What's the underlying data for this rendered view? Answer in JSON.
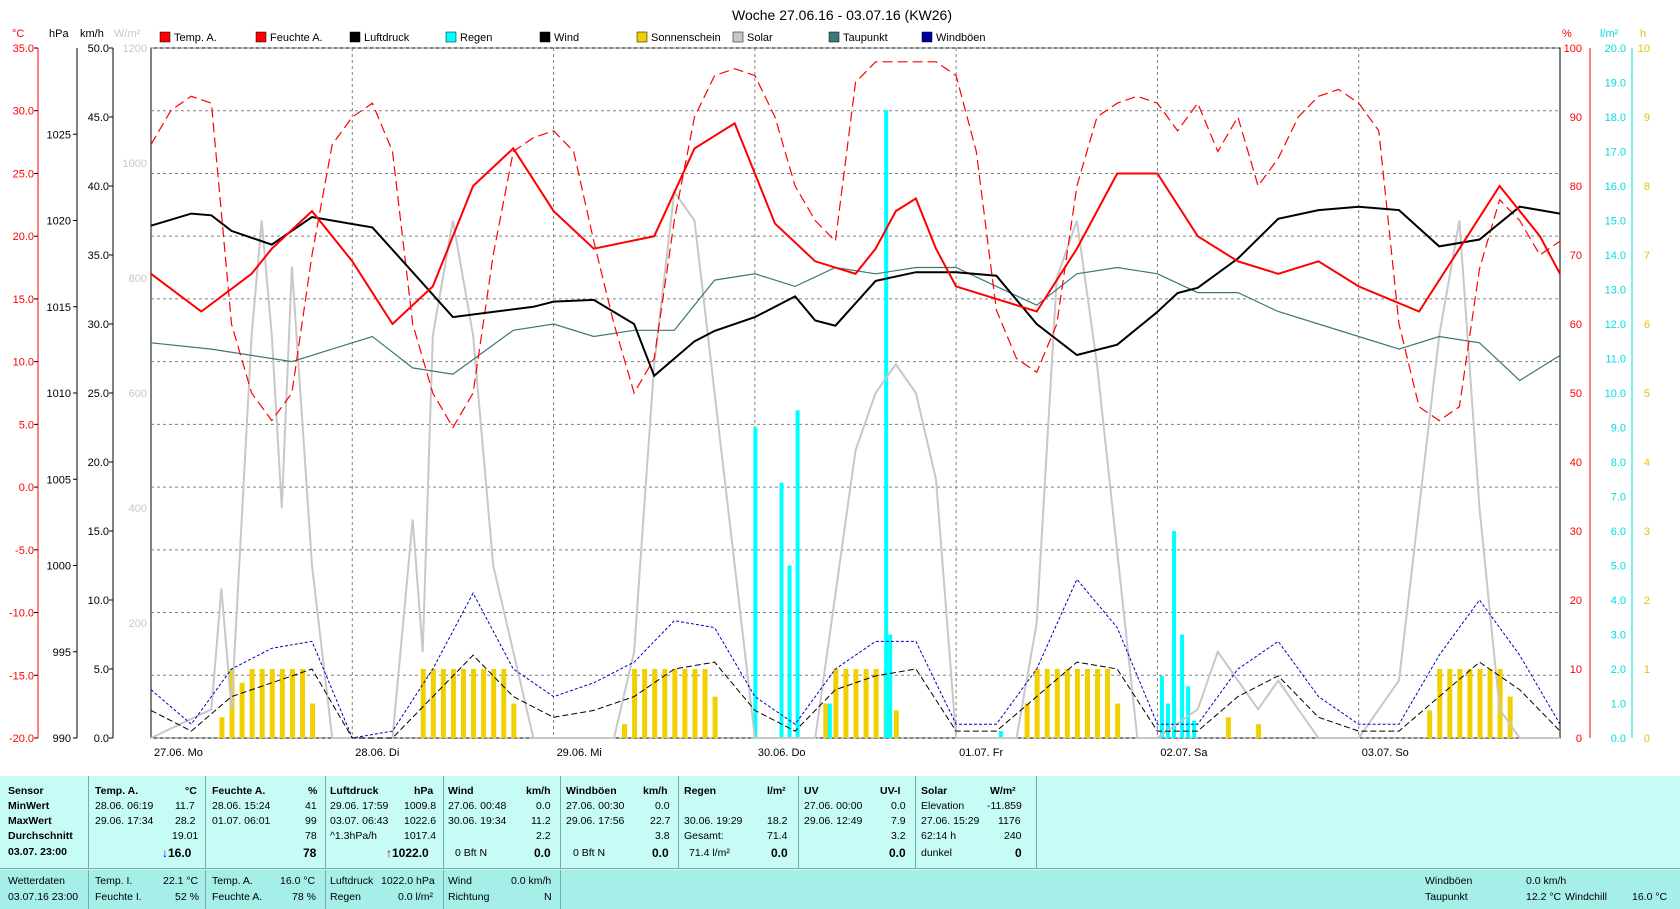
{
  "chart_data": {
    "type": "line",
    "title": "Woche 27.06.16 - 03.07.16 (KW26)",
    "x_ticks": [
      "27.06. Mo",
      "28.06. Di",
      "29.06. Mi",
      "30.06. Do",
      "01.07. Fr",
      "02.07. Sa",
      "03.07. So"
    ],
    "x_range": [
      0,
      7
    ],
    "axes": {
      "temp_c": {
        "unit": "°C",
        "range": [
          -20,
          35
        ],
        "ticks": [
          "35.0",
          "30.0",
          "25.0",
          "20.0",
          "15.0",
          "10.0",
          "5.0",
          "0.0",
          "-5.0",
          "-10.0",
          "-15.0",
          "-20.0"
        ]
      },
      "pressure_hpa": {
        "unit": "hPa",
        "range": [
          990,
          1030
        ],
        "ticks": [
          "1025",
          "1020",
          "1015",
          "1010",
          "1005",
          "1000",
          "995",
          "990"
        ]
      },
      "wind_kmh": {
        "unit": "km/h",
        "range": [
          0,
          50
        ],
        "ticks": [
          "50.0",
          "45.0",
          "40.0",
          "35.0",
          "30.0",
          "25.0",
          "20.0",
          "15.0",
          "10.0",
          "5.0",
          "0.0"
        ]
      },
      "solar_wm2": {
        "unit": "W/m²",
        "range": [
          0,
          1200
        ],
        "ticks": [
          "1200",
          "1000",
          "800",
          "600",
          "400",
          "200"
        ]
      },
      "humidity_pct": {
        "unit": "%",
        "range": [
          0,
          100
        ],
        "ticks": [
          "100",
          "90",
          "80",
          "70",
          "60",
          "50",
          "40",
          "30",
          "20",
          "10",
          "0"
        ]
      },
      "rain_lm2": {
        "unit": "l/m²",
        "range": [
          0,
          20
        ],
        "ticks": [
          "20.0",
          "19.0",
          "18.0",
          "17.0",
          "16.0",
          "15.0",
          "14.0",
          "13.0",
          "12.0",
          "11.0",
          "10.0",
          "9.0",
          "8.0",
          "7.0",
          "6.0",
          "5.0",
          "4.0",
          "3.0",
          "2.0",
          "1.0",
          "0.0"
        ]
      },
      "sun_h": {
        "unit": "h",
        "range": [
          0,
          10
        ],
        "ticks": [
          "10",
          "9",
          "8",
          "7",
          "6",
          "5",
          "4",
          "3",
          "2",
          "1",
          "0"
        ]
      }
    },
    "legend": [
      {
        "name": "Temp. A.",
        "color": "#ff0000"
      },
      {
        "name": "Feuchte A.",
        "color": "#ff0000"
      },
      {
        "name": "Luftdruck",
        "color": "#000000"
      },
      {
        "name": "Regen",
        "color": "#00ffff"
      },
      {
        "name": "Wind",
        "color": "#000000"
      },
      {
        "name": "Sonnenschein",
        "color": "#f0d000"
      },
      {
        "name": "Solar",
        "color": "#c8c8c8"
      },
      {
        "name": "Taupunkt",
        "color": "#3c7878"
      },
      {
        "name": "Windböen",
        "color": "#0000a0"
      }
    ],
    "series": [
      {
        "name": "Temp. A.",
        "unit": "°C",
        "x": [
          0,
          0.25,
          0.5,
          0.6,
          0.8,
          1.0,
          1.2,
          1.4,
          1.6,
          1.8,
          2.0,
          2.2,
          2.5,
          2.7,
          2.9,
          3.1,
          3.3,
          3.5,
          3.6,
          3.7,
          3.8,
          3.9,
          4.0,
          4.2,
          4.4,
          4.6,
          4.8,
          5.0,
          5.2,
          5.4,
          5.6,
          5.8,
          6.0,
          6.3,
          6.5,
          6.7,
          6.9,
          7.0
        ],
        "y": [
          17,
          14,
          17,
          19,
          22,
          18,
          13,
          16,
          24,
          27,
          22,
          19,
          20,
          27,
          29,
          21,
          18,
          17,
          19,
          22,
          23,
          19,
          16,
          15,
          14,
          19,
          25,
          25,
          20,
          18,
          17,
          18,
          16,
          14,
          19,
          24,
          20,
          17
        ]
      },
      {
        "name": "Feuchte A.",
        "unit": "%",
        "x": [
          0,
          0.1,
          0.2,
          0.3,
          0.4,
          0.5,
          0.6,
          0.7,
          0.8,
          0.9,
          1.0,
          1.1,
          1.2,
          1.3,
          1.4,
          1.5,
          1.6,
          1.7,
          1.8,
          1.9,
          2.0,
          2.1,
          2.2,
          2.3,
          2.4,
          2.5,
          2.6,
          2.7,
          2.8,
          2.9,
          3.0,
          3.1,
          3.2,
          3.3,
          3.4,
          3.5,
          3.6,
          3.7,
          3.8,
          3.9,
          4.0,
          4.1,
          4.2,
          4.3,
          4.4,
          4.5,
          4.6,
          4.7,
          4.8,
          4.9,
          5.0,
          5.1,
          5.2,
          5.3,
          5.4,
          5.5,
          5.6,
          5.7,
          5.8,
          5.9,
          6.0,
          6.1,
          6.2,
          6.3,
          6.4,
          6.5,
          6.6,
          6.7,
          6.8,
          6.9,
          7.0
        ],
        "y": [
          86,
          91,
          93,
          92,
          60,
          50,
          46,
          50,
          70,
          86,
          90,
          92,
          85,
          60,
          50,
          45,
          50,
          70,
          85,
          87,
          88,
          85,
          72,
          60,
          50,
          55,
          75,
          90,
          96,
          97,
          96,
          90,
          80,
          75,
          72,
          95,
          98,
          98,
          98,
          98,
          96,
          85,
          62,
          55,
          53,
          60,
          80,
          90,
          92,
          93,
          92,
          88,
          92,
          85,
          90,
          80,
          84,
          90,
          93,
          94,
          92,
          88,
          60,
          48,
          46,
          48,
          68,
          78,
          75,
          70,
          72
        ]
      },
      {
        "name": "Luftdruck",
        "unit": "hPa",
        "x": [
          0,
          0.2,
          0.3,
          0.4,
          0.6,
          0.8,
          1.0,
          1.1,
          1.3,
          1.5,
          1.7,
          1.9,
          2.0,
          2.2,
          2.4,
          2.5,
          2.7,
          2.8,
          3.0,
          3.2,
          3.3,
          3.4,
          3.6,
          3.8,
          3.9,
          4.0,
          4.2,
          4.4,
          4.6,
          4.8,
          5.0,
          5.1,
          5.2,
          5.4,
          5.6,
          5.8,
          6.0,
          6.2,
          6.4,
          6.6,
          6.8,
          6.9,
          7.0
        ],
        "y": [
          1019.7,
          1020.4,
          1020.3,
          1019.4,
          1018.6,
          1020.2,
          1019.8,
          1019.6,
          1017.0,
          1014.4,
          1014.7,
          1015.0,
          1015.3,
          1015.4,
          1014.0,
          1011.0,
          1013.0,
          1013.6,
          1014.4,
          1015.6,
          1014.2,
          1013.9,
          1016.5,
          1017.0,
          1017.0,
          1017.0,
          1016.8,
          1014.0,
          1012.2,
          1012.8,
          1014.7,
          1015.8,
          1016.1,
          1017.8,
          1020.1,
          1020.6,
          1020.8,
          1020.6,
          1018.5,
          1018.9,
          1020.8,
          1020.6,
          1020.4
        ]
      },
      {
        "name": "Taupunkt",
        "unit": "°C",
        "x": [
          0,
          0.3,
          0.5,
          0.7,
          0.9,
          1.1,
          1.3,
          1.5,
          1.8,
          2.0,
          2.2,
          2.4,
          2.6,
          2.8,
          3.0,
          3.2,
          3.4,
          3.6,
          3.8,
          4.0,
          4.2,
          4.4,
          4.6,
          4.8,
          5.0,
          5.2,
          5.4,
          5.6,
          5.8,
          6.0,
          6.2,
          6.4,
          6.6,
          6.8,
          7.0
        ],
        "y": [
          11.5,
          11.0,
          10.5,
          10.0,
          11.0,
          12.0,
          9.5,
          9.0,
          12.5,
          13.0,
          12.0,
          12.5,
          12.5,
          16.5,
          17.0,
          16.0,
          17.5,
          17.0,
          17.5,
          17.5,
          16.0,
          14.5,
          17.0,
          17.5,
          17.0,
          15.5,
          15.5,
          14.0,
          13.0,
          12.0,
          11.0,
          12.0,
          11.5,
          8.5,
          10.5
        ]
      },
      {
        "name": "Solar",
        "unit": "W/m²",
        "x": [
          0,
          0.3,
          0.35,
          0.4,
          0.5,
          0.55,
          0.6,
          0.65,
          0.7,
          0.8,
          0.9,
          1.2,
          1.3,
          1.35,
          1.4,
          1.5,
          1.6,
          1.7,
          1.9,
          2.0,
          2.3,
          2.4,
          2.5,
          2.6,
          2.7,
          2.8,
          3.0,
          3.1,
          3.2,
          3.3,
          3.4,
          3.5,
          3.6,
          3.7,
          3.8,
          3.9,
          4.0,
          4.3,
          4.4,
          4.5,
          4.6,
          4.7,
          4.9,
          5.0,
          5.2,
          5.3,
          5.4,
          5.5,
          5.6,
          5.7,
          5.8,
          6.0,
          6.2,
          6.3,
          6.4,
          6.5,
          6.6,
          6.7,
          6.8,
          6.9,
          7.0
        ],
        "y": [
          0,
          50,
          260,
          50,
          700,
          900,
          700,
          400,
          820,
          300,
          0,
          0,
          380,
          150,
          700,
          900,
          700,
          300,
          0,
          0,
          0,
          150,
          650,
          950,
          900,
          600,
          0,
          0,
          0,
          0,
          250,
          500,
          600,
          650,
          600,
          450,
          0,
          0,
          200,
          800,
          900,
          650,
          0,
          0,
          50,
          150,
          100,
          50,
          100,
          50,
          0,
          0,
          100,
          400,
          700,
          900,
          400,
          50,
          0,
          0,
          0
        ]
      },
      {
        "name": "Wind",
        "unit": "km/h",
        "x": [
          0,
          0.2,
          0.4,
          0.6,
          0.8,
          1.0,
          1.2,
          1.4,
          1.6,
          1.8,
          2.0,
          2.2,
          2.4,
          2.6,
          2.8,
          3.0,
          3.2,
          3.4,
          3.6,
          3.8,
          4.0,
          4.2,
          4.4,
          4.6,
          4.8,
          5.0,
          5.2,
          5.4,
          5.6,
          5.8,
          6.0,
          6.2,
          6.4,
          6.6,
          6.8,
          7.0
        ],
        "y": [
          2.0,
          0.5,
          3.0,
          4.0,
          5.0,
          0.0,
          0.0,
          3.0,
          6.0,
          3.0,
          1.5,
          2.0,
          3.0,
          5.0,
          5.5,
          2.0,
          0.5,
          3.5,
          4.5,
          5.0,
          0.5,
          0.5,
          3.0,
          5.5,
          5.0,
          0.5,
          0.5,
          3.0,
          4.5,
          1.5,
          0.5,
          0.5,
          3.0,
          5.5,
          3.5,
          0.5
        ]
      },
      {
        "name": "Windböen",
        "unit": "km/h",
        "x": [
          0,
          0.2,
          0.4,
          0.6,
          0.8,
          1.0,
          1.2,
          1.4,
          1.6,
          1.8,
          2.0,
          2.2,
          2.4,
          2.6,
          2.8,
          3.0,
          3.2,
          3.4,
          3.6,
          3.8,
          4.0,
          4.2,
          4.4,
          4.6,
          4.8,
          5.0,
          5.2,
          5.4,
          5.6,
          5.8,
          6.0,
          6.2,
          6.4,
          6.6,
          6.8,
          7.0
        ],
        "y": [
          3.5,
          1.0,
          5.0,
          6.5,
          7.0,
          0.0,
          0.5,
          5.0,
          10.5,
          5.0,
          3.0,
          4.0,
          5.5,
          8.5,
          8.0,
          3.0,
          1.0,
          5.0,
          7.0,
          7.0,
          1.0,
          1.0,
          5.0,
          11.5,
          8.0,
          1.0,
          1.0,
          5.0,
          7.0,
          3.0,
          1.0,
          1.0,
          6.0,
          10.0,
          6.0,
          1.0
        ]
      }
    ],
    "rain_bars": {
      "unit": "l/m²",
      "x": [
        3.0,
        3.13,
        3.17,
        3.21,
        3.37,
        3.65,
        3.67,
        4.22,
        5.02,
        5.05,
        5.08,
        5.12,
        5.15,
        5.18
      ],
      "y": [
        9.0,
        7.4,
        5.0,
        9.5,
        1.0,
        18.2,
        3.0,
        0.2,
        1.8,
        1.0,
        6.0,
        3.0,
        1.5,
        0.5
      ]
    },
    "sun_bars": {
      "unit": "h",
      "x": [
        0.35,
        0.4,
        0.45,
        0.5,
        0.55,
        0.6,
        0.65,
        0.7,
        0.75,
        0.8,
        1.35,
        1.4,
        1.45,
        1.5,
        1.55,
        1.6,
        1.65,
        1.7,
        1.75,
        1.8,
        2.35,
        2.4,
        2.45,
        2.5,
        2.55,
        2.6,
        2.65,
        2.7,
        2.75,
        2.8,
        3.35,
        3.4,
        3.45,
        3.5,
        3.55,
        3.6,
        3.65,
        3.7,
        4.35,
        4.4,
        4.45,
        4.5,
        4.55,
        4.6,
        4.65,
        4.7,
        4.75,
        4.8,
        5.35,
        5.5,
        6.35,
        6.4,
        6.45,
        6.5,
        6.55,
        6.6,
        6.65,
        6.7,
        6.75
      ],
      "y": [
        0.3,
        1,
        0.8,
        1,
        1,
        1,
        1,
        1,
        1,
        0.5,
        1,
        1,
        1,
        1,
        1,
        1,
        1,
        1,
        1,
        0.5,
        0.2,
        1,
        1,
        1,
        1,
        1,
        1,
        1,
        1,
        0.6,
        0.5,
        1,
        1,
        1,
        1,
        1,
        1,
        0.4,
        0.5,
        1,
        1,
        1,
        1,
        1,
        1,
        1,
        1,
        0.5,
        0.3,
        0.2,
        0.4,
        1,
        1,
        1,
        1,
        1,
        1,
        1,
        0.6
      ]
    }
  },
  "table": {
    "rows_label": [
      "Sensor",
      "MinWert",
      "MaxWert",
      "Durchschnitt",
      "03.07. 23:00"
    ],
    "temp": {
      "head": "Temp. A.",
      "unit": "°C",
      "min_t": "28.06. 06:19",
      "min_v": "11.7",
      "max_t": "29.06. 17:34",
      "max_v": "28.2",
      "avg": "19.01",
      "now": "16.0"
    },
    "hum": {
      "head": "Feuchte A.",
      "unit": "%",
      "min_t": "28.06. 15:24",
      "min_v": "41",
      "max_t": "01.07. 06:01",
      "max_v": "99",
      "avg": "78",
      "now": "78"
    },
    "press": {
      "head": "Luftdruck",
      "unit": "hPa",
      "min_t": "29.06. 17:59",
      "min_v": "1009.8",
      "max_t": "03.07. 06:43",
      "max_v": "1022.6",
      "avg_t": "^1.3hPa/h",
      "avg": "1017.4",
      "now": "1022.0"
    },
    "wind": {
      "head": "Wind",
      "unit": "km/h",
      "min_t": "27.06. 00:48",
      "min_v": "0.0",
      "max_t": "30.06. 19:34",
      "max_v": "11.2",
      "avg": "2.2",
      "avg2": "3.8",
      "now_t": "0 Bft N",
      "now": "0.0"
    },
    "gust": {
      "head": "Windböen",
      "unit": "km/h",
      "min_t": "27.06. 00:30",
      "min_v": "0.0",
      "max_t": "29.06. 17:56",
      "max_v": "22.7",
      "now_t": "0 Bft N",
      "now": "0.0"
    },
    "rain": {
      "head": "Regen",
      "unit": "l/m²",
      "max_t": "30.06. 19:29",
      "max_v": "18.2",
      "tot_l": "Gesamt:",
      "tot_v": "71.4",
      "now_t": "71.4 l/m²",
      "now": "0.0"
    },
    "uv": {
      "head": "UV",
      "unit": "UV-I",
      "min_t": "27.06. 00:00",
      "min_v": "0.0",
      "max_t": "29.06. 12:49",
      "max_v": "7.9",
      "avg": "3.2",
      "now": "0.0"
    },
    "solar": {
      "head": "Solar",
      "unit": "W/m²",
      "min_t": "Elevation",
      "min_v": "-11.859",
      "max_t": "27.06. 15:29",
      "max_v": "1176",
      "avg_t": "62:14 h",
      "avg": "240",
      "now_t": "dunkel",
      "now": "0"
    },
    "footer": {
      "l1": "Wetterdaten",
      "l2": "03.07.16 23:00",
      "ti_l": "Temp. I.",
      "ti_v": "22.1 °C",
      "fi_l": "Feuchte I.",
      "fi_v": "52 %",
      "ta_l": "Temp. A.",
      "ta_v": "16.0 °C",
      "fa_l": "Feuchte A.",
      "fa_v": "78 %",
      "lp_l": "Luftdruck",
      "lp_v": "1022.0 hPa",
      "rg_l": "Regen",
      "rg_v": "0.0 l/m²",
      "wd_l": "Wind",
      "wd_v": "0.0 km/h",
      "ri_l": "Richtung",
      "ri_v": "N",
      "wb_l": "Windböen",
      "wb_v": "0.0 km/h",
      "tp_l": "Taupunkt",
      "tp_v": "12.2 °C",
      "wc_l": "Windchill",
      "wc_v": "16.0 °C"
    }
  }
}
